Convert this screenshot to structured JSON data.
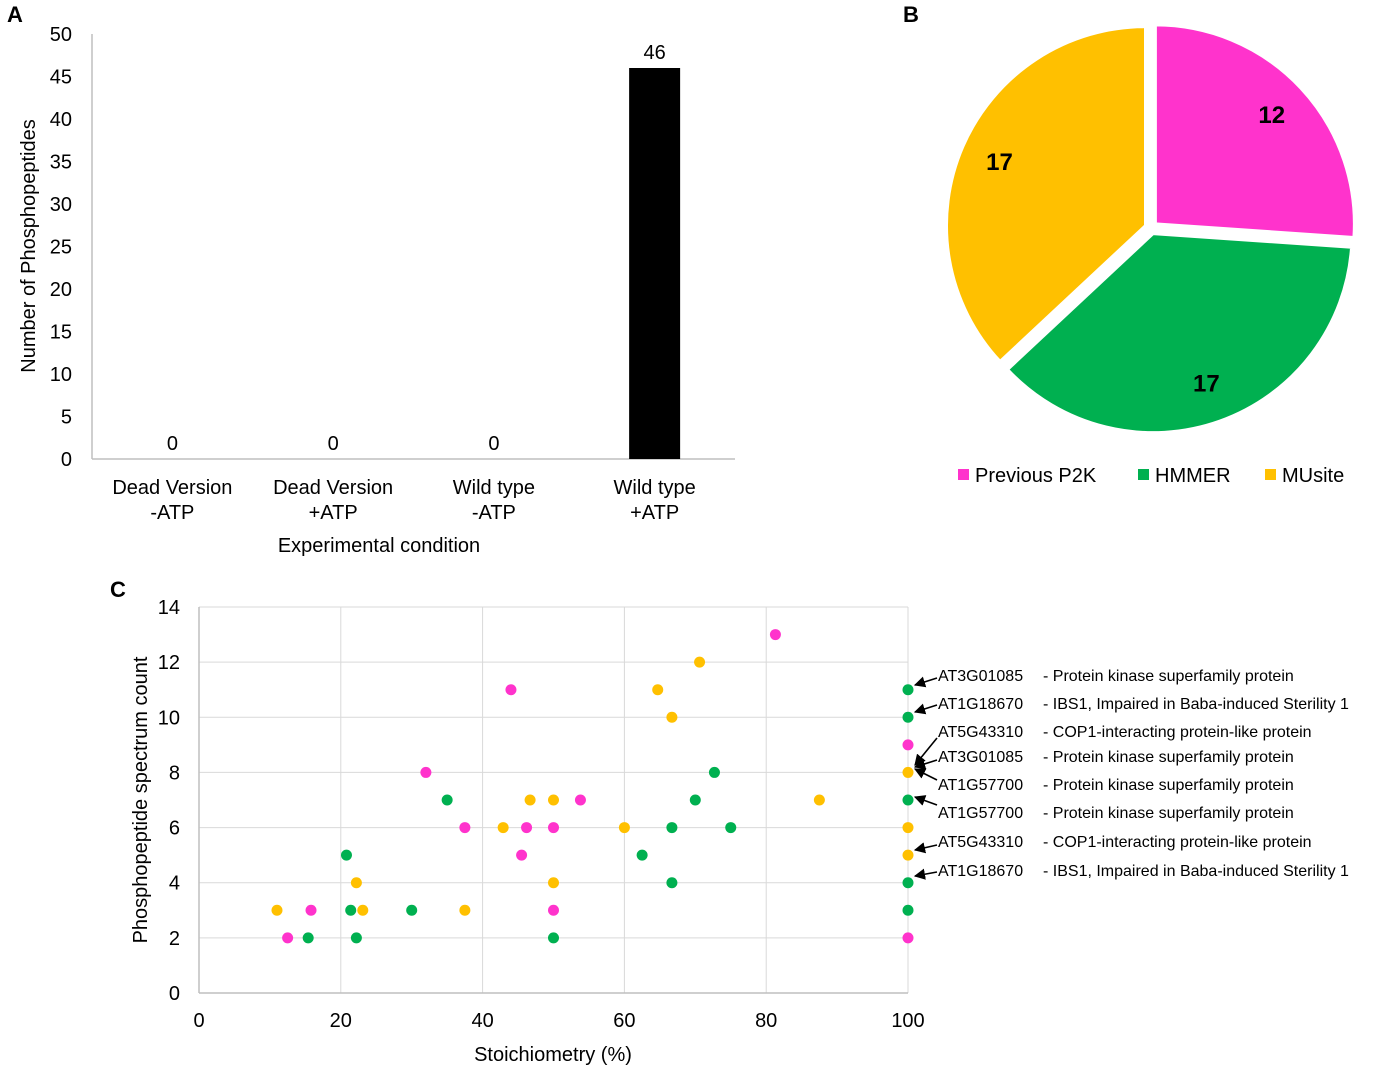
{
  "colors": {
    "magenta": "#ff33cc",
    "green": "#00b050",
    "orange": "#ffc000",
    "bar": "#000000",
    "grid": "#d9d9d9",
    "axis": "#bfbfbf"
  },
  "chart_data": [
    {
      "panel_label": "A",
      "type": "bar",
      "title": "",
      "xlabel": "Experimental condition",
      "ylabel": "Number of Phosphopeptides",
      "categories": [
        [
          "Dead Version",
          "-ATP"
        ],
        [
          "Dead Version",
          "+ATP"
        ],
        [
          "Wild type",
          "-ATP"
        ],
        [
          "Wild type",
          "+ATP"
        ]
      ],
      "values": [
        0,
        0,
        0,
        46
      ],
      "data_labels": [
        "0",
        "0",
        "0",
        "46"
      ],
      "ylim": [
        0,
        50
      ],
      "yticks": [
        0,
        5,
        10,
        15,
        20,
        25,
        30,
        35,
        40,
        45,
        50
      ],
      "grid": false
    },
    {
      "panel_label": "B",
      "type": "pie",
      "slices": [
        {
          "label": "Previous P2K",
          "value": 12,
          "color": "#ff33cc"
        },
        {
          "label": "HMMER",
          "value": 17,
          "color": "#00b050"
        },
        {
          "label": "MUsite",
          "value": 17,
          "color": "#ffc000"
        }
      ],
      "legend_position": "bottom"
    },
    {
      "panel_label": "C",
      "type": "scatter",
      "xlabel": "Stoichiometry (%)",
      "ylabel": "Phosphopeptide spectrum count",
      "xlim": [
        0,
        100
      ],
      "ylim": [
        0,
        14
      ],
      "xticks": [
        0,
        20,
        40,
        60,
        80,
        100
      ],
      "yticks": [
        0,
        2,
        4,
        6,
        8,
        10,
        12,
        14
      ],
      "grid": true,
      "series": [
        {
          "name": "Previous P2K",
          "color": "#ff33cc",
          "points": [
            [
              12.5,
              2
            ],
            [
              15.8,
              3
            ],
            [
              32,
              8
            ],
            [
              37.5,
              6
            ],
            [
              44,
              11
            ],
            [
              45.5,
              5
            ],
            [
              46.2,
              6
            ],
            [
              50,
              6
            ],
            [
              50,
              3
            ],
            [
              53.8,
              7
            ],
            [
              81.3,
              13
            ],
            [
              100,
              9
            ],
            [
              100,
              2
            ]
          ]
        },
        {
          "name": "HMMER",
          "color": "#00b050",
          "points": [
            [
              15.4,
              2
            ],
            [
              20.8,
              5
            ],
            [
              21.4,
              3
            ],
            [
              22.2,
              2
            ],
            [
              30,
              3
            ],
            [
              35,
              7
            ],
            [
              50,
              2
            ],
            [
              62.5,
              5
            ],
            [
              66.7,
              6
            ],
            [
              66.7,
              4
            ],
            [
              70,
              7
            ],
            [
              72.7,
              8
            ],
            [
              75,
              6
            ],
            [
              100,
              11
            ],
            [
              100,
              10
            ],
            [
              100,
              7
            ],
            [
              100,
              4
            ],
            [
              100,
              3
            ]
          ]
        },
        {
          "name": "MUsite",
          "color": "#ffc000",
          "points": [
            [
              11,
              3
            ],
            [
              22.2,
              4
            ],
            [
              23.1,
              3
            ],
            [
              37.5,
              3
            ],
            [
              42.9,
              6
            ],
            [
              46.7,
              7
            ],
            [
              50,
              7
            ],
            [
              50,
              4
            ],
            [
              60,
              6
            ],
            [
              64.7,
              11
            ],
            [
              66.7,
              10
            ],
            [
              70.6,
              12
            ],
            [
              87.5,
              7
            ],
            [
              100,
              8
            ],
            [
              100,
              6
            ],
            [
              100,
              5
            ]
          ]
        }
      ],
      "annotations": [
        {
          "gene": "AT3G01085",
          "desc": "- Protein kinase superfamily protein",
          "target": [
            100,
            11
          ]
        },
        {
          "gene": "AT1G18670",
          "desc": "- IBS1, Impaired in Baba-induced Sterility 1",
          "target": [
            100,
            10
          ]
        },
        {
          "gene": "AT5G43310",
          "desc": "- COP1-interacting protein-like protein",
          "target": [
            100,
            8
          ]
        },
        {
          "gene": "AT3G01085",
          "desc": "- Protein kinase superfamily protein",
          "target": [
            100,
            8
          ]
        },
        {
          "gene": "AT1G57700",
          "desc": "- Protein kinase superfamily protein",
          "target": [
            100,
            8
          ]
        },
        {
          "gene": "AT1G57700",
          "desc": "- Protein kinase superfamily protein",
          "target": [
            100,
            7
          ]
        },
        {
          "gene": "AT5G43310",
          "desc": "- COP1-interacting protein-like protein",
          "target": [
            100,
            5
          ]
        },
        {
          "gene": "AT1G18670",
          "desc": "- IBS1, Impaired in Baba-induced Sterility 1",
          "target": [
            100,
            4
          ]
        }
      ]
    }
  ]
}
